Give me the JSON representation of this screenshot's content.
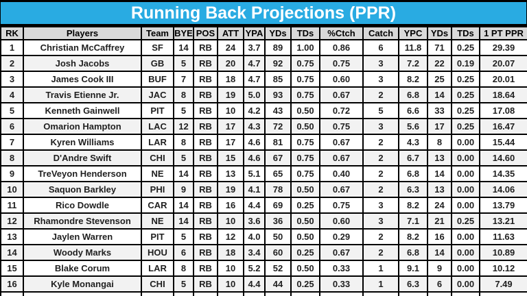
{
  "title": "Running Back Projections (PPR)",
  "colors": {
    "banner_bg": "#29ABE2",
    "banner_text": "#FFFFFF",
    "header_bg": "#D9D9D9",
    "row_bg": "#FFFFFF",
    "row_alt_bg": "#F2F2F2",
    "border": "#000000",
    "text": "#1F1F1F"
  },
  "chart_data": {
    "type": "table",
    "title": "Running Back Projections (PPR)",
    "columns": [
      "RK",
      "Players",
      "Team",
      "BYE",
      "POS",
      "ATT",
      "YPA",
      "YDs",
      "TDs",
      "%Ctch",
      "Catch",
      "YPC",
      "YDs",
      "TDs",
      "1 PT PPR"
    ],
    "rows": [
      [
        "1",
        "Christian McCaffrey",
        "SF",
        "14",
        "RB",
        "24",
        "3.7",
        "89",
        "1.00",
        "0.86",
        "6",
        "11.8",
        "71",
        "0.25",
        "29.39"
      ],
      [
        "2",
        "Josh Jacobs",
        "GB",
        "5",
        "RB",
        "20",
        "4.7",
        "92",
        "0.75",
        "0.75",
        "3",
        "7.2",
        "22",
        "0.19",
        "20.07"
      ],
      [
        "3",
        "James Cook III",
        "BUF",
        "7",
        "RB",
        "18",
        "4.7",
        "85",
        "0.75",
        "0.60",
        "3",
        "8.2",
        "25",
        "0.25",
        "20.01"
      ],
      [
        "4",
        "Travis Etienne Jr.",
        "JAC",
        "8",
        "RB",
        "19",
        "5.0",
        "93",
        "0.75",
        "0.67",
        "2",
        "6.8",
        "14",
        "0.25",
        "18.64"
      ],
      [
        "5",
        "Kenneth Gainwell",
        "PIT",
        "5",
        "RB",
        "10",
        "4.2",
        "43",
        "0.50",
        "0.72",
        "5",
        "6.6",
        "33",
        "0.25",
        "17.08"
      ],
      [
        "6",
        "Omarion Hampton",
        "LAC",
        "12",
        "RB",
        "17",
        "4.3",
        "72",
        "0.50",
        "0.75",
        "3",
        "5.6",
        "17",
        "0.25",
        "16.47"
      ],
      [
        "7",
        "Kyren Williams",
        "LAR",
        "8",
        "RB",
        "17",
        "4.6",
        "81",
        "0.75",
        "0.67",
        "2",
        "4.3",
        "8",
        "0.00",
        "15.44"
      ],
      [
        "8",
        "D'Andre Swift",
        "CHI",
        "5",
        "RB",
        "15",
        "4.6",
        "67",
        "0.75",
        "0.67",
        "2",
        "6.7",
        "13",
        "0.00",
        "14.60"
      ],
      [
        "9",
        "TreVeyon Henderson",
        "NE",
        "14",
        "RB",
        "13",
        "5.1",
        "65",
        "0.75",
        "0.40",
        "2",
        "6.8",
        "14",
        "0.00",
        "14.35"
      ],
      [
        "10",
        "Saquon Barkley",
        "PHI",
        "9",
        "RB",
        "19",
        "4.1",
        "78",
        "0.50",
        "0.67",
        "2",
        "6.3",
        "13",
        "0.00",
        "14.06"
      ],
      [
        "11",
        "Rico Dowdle",
        "CAR",
        "14",
        "RB",
        "16",
        "4.4",
        "69",
        "0.25",
        "0.75",
        "3",
        "8.2",
        "24",
        "0.00",
        "13.79"
      ],
      [
        "12",
        "Rhamondre Stevenson",
        "NE",
        "14",
        "RB",
        "10",
        "3.6",
        "36",
        "0.50",
        "0.60",
        "3",
        "7.1",
        "21",
        "0.25",
        "13.21"
      ],
      [
        "13",
        "Jaylen Warren",
        "PIT",
        "5",
        "RB",
        "12",
        "4.0",
        "50",
        "0.50",
        "0.29",
        "2",
        "8.2",
        "16",
        "0.00",
        "11.63"
      ],
      [
        "14",
        "Woody Marks",
        "HOU",
        "6",
        "RB",
        "18",
        "3.4",
        "60",
        "0.25",
        "0.67",
        "2",
        "6.8",
        "14",
        "0.00",
        "10.89"
      ],
      [
        "15",
        "Blake Corum",
        "LAR",
        "8",
        "RB",
        "10",
        "5.2",
        "52",
        "0.50",
        "0.33",
        "1",
        "9.1",
        "9",
        "0.00",
        "10.12"
      ],
      [
        "16",
        "Kyle Monangai",
        "CHI",
        "5",
        "RB",
        "10",
        "4.4",
        "44",
        "0.25",
        "0.33",
        "1",
        "6.3",
        "6",
        "0.00",
        "7.49"
      ]
    ],
    "partial_row_visible_at_bottom": true,
    "layout_hints": {
      "header_row": true,
      "zebra_striping": true,
      "all_cells_centered": true
    }
  }
}
